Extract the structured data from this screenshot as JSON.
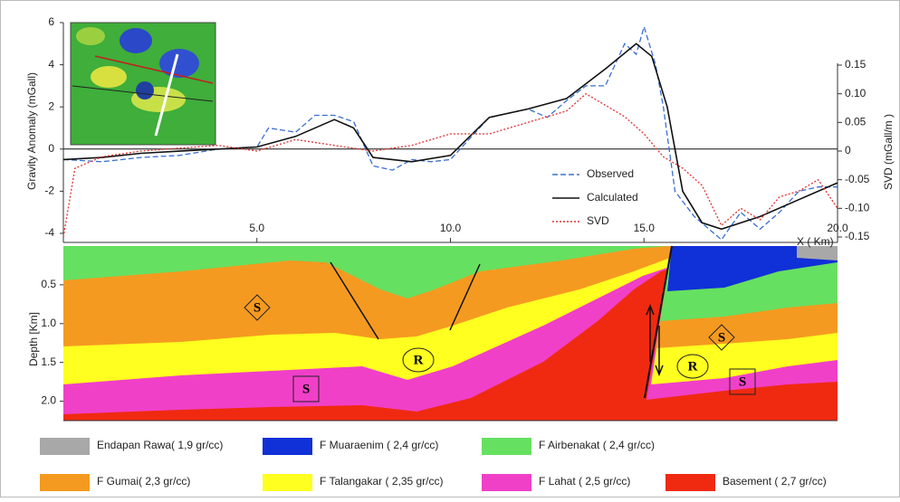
{
  "chart_data": [
    {
      "type": "line",
      "ylabel": "Gravity Anomaly (mGall)",
      "y2label": "SVD  (mGall/m )",
      "xlabel": "X ( Km)",
      "xlim": [
        0,
        20
      ],
      "xticks": [
        {
          "value": 5,
          "label": "5.0"
        },
        {
          "value": 10,
          "label": "10.0"
        },
        {
          "value": 15,
          "label": "15.0"
        },
        {
          "value": 20,
          "label": "20.0"
        }
      ],
      "ylim": [
        -4,
        6
      ],
      "yticks": [
        -4,
        -2,
        0,
        2,
        4,
        6
      ],
      "y2lim": [
        -0.15,
        0.15
      ],
      "y2ticks": [
        0.15,
        {
          "value": 0.1,
          "label": "0.10"
        },
        0.05,
        0,
        -0.05,
        {
          "value": -0.1,
          "label": "-0.10"
        },
        -0.15
      ],
      "legend": "lower center",
      "series": [
        {
          "name": "Observed",
          "color": "#3a6fd1",
          "dash": "6,3",
          "x": [
            0,
            1,
            2,
            3,
            4,
            5,
            5.3,
            6,
            6.5,
            7,
            7.5,
            8,
            8.5,
            9,
            9.5,
            10,
            10.5,
            11,
            12,
            12.5,
            13,
            13.5,
            14,
            14.5,
            14.8,
            15,
            15.3,
            15.5,
            15.8,
            16.3,
            17,
            17.5,
            18,
            18.5,
            19,
            19.5,
            20
          ],
          "values": [
            -0.5,
            -0.6,
            -0.4,
            -0.3,
            0,
            0.1,
            1,
            0.8,
            1.6,
            1.6,
            1.3,
            -0.8,
            -1,
            -0.5,
            -0.6,
            -0.5,
            0.5,
            1.5,
            1.9,
            1.5,
            2.3,
            3,
            3,
            5,
            4.5,
            5.8,
            4,
            2,
            -2,
            -3.2,
            -4.3,
            -3,
            -3.8,
            -3,
            -2,
            -1.8,
            -1.8
          ]
        },
        {
          "name": "Calculated",
          "color": "#111111",
          "dash": "none",
          "x": [
            0,
            1,
            2,
            3,
            4,
            5,
            6,
            7,
            7.5,
            8,
            9,
            10,
            11,
            12,
            13,
            14,
            14.8,
            15.2,
            15.6,
            16,
            16.5,
            17,
            18,
            19,
            20
          ],
          "values": [
            -0.5,
            -0.4,
            -0.2,
            -0.1,
            0,
            0.1,
            0.6,
            1.4,
            1,
            -0.4,
            -0.6,
            -0.3,
            1.5,
            1.9,
            2.4,
            3.8,
            5,
            4.4,
            2,
            -2,
            -3.5,
            -3.8,
            -3.2,
            -2.4,
            -1.6
          ]
        },
        {
          "name": "SVD",
          "color": "#e03030",
          "dash": "2,2",
          "axis": "y2",
          "x": [
            0,
            0.3,
            1,
            2,
            3,
            4,
            5,
            6,
            7,
            8,
            9,
            10,
            11,
            12,
            13,
            13.5,
            14,
            14.5,
            15,
            15.5,
            16,
            16.5,
            17,
            17.5,
            18,
            18.5,
            19,
            19.5,
            20
          ],
          "values": [
            -0.15,
            -0.03,
            -0.01,
            0,
            0.005,
            0.01,
            0,
            0.02,
            0.01,
            0,
            0.01,
            0.03,
            0.03,
            0.05,
            0.07,
            0.1,
            0.08,
            0.06,
            0.03,
            -0.01,
            -0.03,
            -0.06,
            -0.13,
            -0.1,
            -0.12,
            -0.08,
            -0.07,
            -0.05,
            -0.1
          ]
        }
      ]
    },
    {
      "type": "section",
      "ylabel": "Depth [Km]",
      "ylim": [
        0,
        2.25
      ],
      "yticks": [
        0.5,
        {
          "value": 1,
          "label": "1.0"
        },
        1.5,
        {
          "value": 2,
          "label": "2.0"
        }
      ],
      "annotations": [
        "S",
        "S",
        "R",
        "S",
        "R",
        "S"
      ],
      "legend": [
        {
          "label": "Endapan Rawa( 1,9 gr/cc)",
          "color": "#a8a8a8"
        },
        {
          "label": "F Muaraenim ( 2,4 gr/cc)",
          "color": "#1030d8"
        },
        {
          "label": "F Airbenakat ( 2,4 gr/cc)",
          "color": "#66e060"
        },
        {
          "label": "F Gumai( 2,3 gr/cc)",
          "color": "#f59a20"
        },
        {
          "label": "F Talangakar ( 2,35 gr/cc)",
          "color": "#ffff20"
        },
        {
          "label": "F Lahat ( 2,5 gr/cc)",
          "color": "#f040c8"
        },
        {
          "label": "Basement ( 2,7 gr/cc)",
          "color": "#f02a10"
        }
      ]
    }
  ]
}
